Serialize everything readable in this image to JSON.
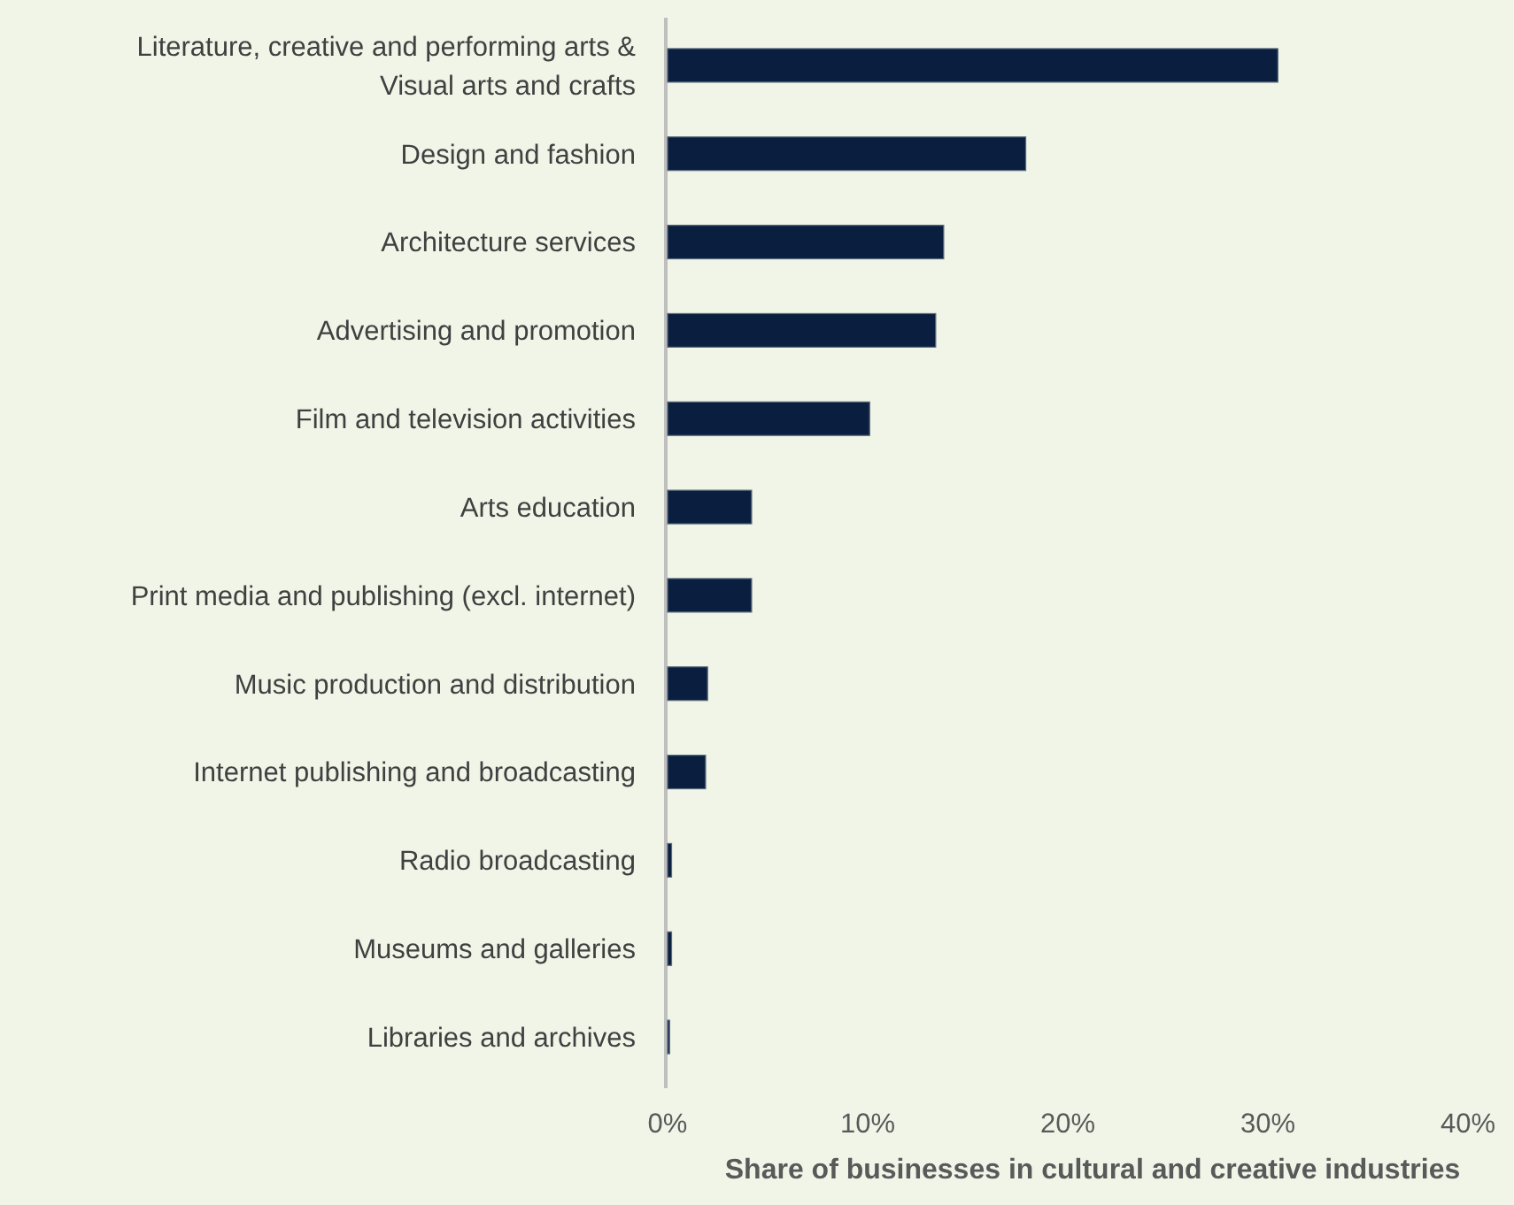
{
  "chart_data": {
    "type": "bar",
    "orientation": "horizontal",
    "xlabel": "Share of businesses in cultural and creative industries",
    "categories": [
      "Literature, creative and performing arts & Visual arts and crafts",
      "Design and fashion",
      "Architecture services",
      "Advertising and promotion",
      "Film and television activities",
      "Arts education",
      "Print media and publishing (excl. internet)",
      "Music production and distribution",
      "Internet publishing and broadcasting",
      "Radio broadcasting",
      "Museums and galleries",
      "Libraries and archives"
    ],
    "values": [
      30.5,
      17.9,
      13.8,
      13.4,
      10.1,
      4.2,
      4.2,
      2.0,
      1.9,
      0.2,
      0.2,
      0.1
    ],
    "color": "#0a1e3f",
    "xlim": [
      0,
      40
    ],
    "xticks": [
      {
        "value": 0,
        "label": "0%"
      },
      {
        "value": 10,
        "label": "10%"
      },
      {
        "value": 20,
        "label": "20%"
      },
      {
        "value": 30,
        "label": "30%"
      },
      {
        "value": 40,
        "label": "40%"
      }
    ],
    "grid": false
  }
}
